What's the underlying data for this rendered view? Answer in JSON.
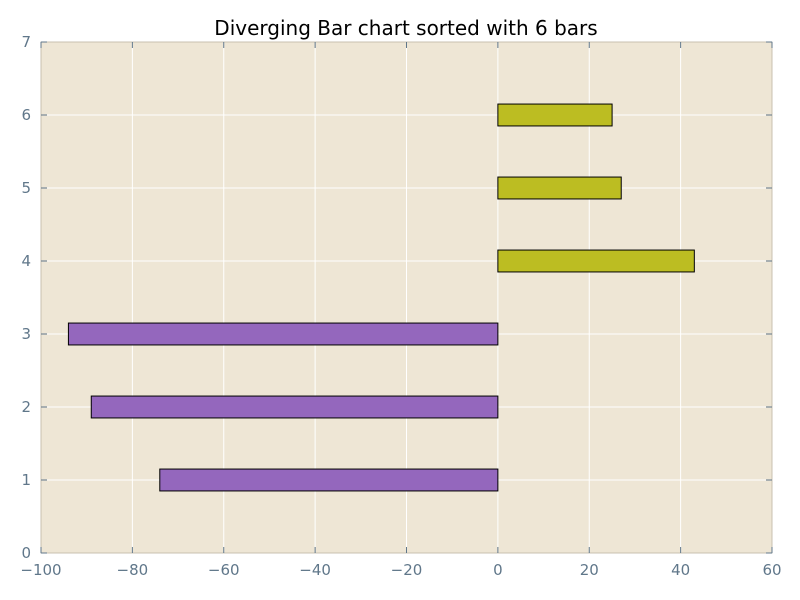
{
  "chart_data": {
    "type": "bar",
    "orientation": "horizontal",
    "title": "Diverging Bar chart sorted with 6 bars",
    "xlabel": "",
    "ylabel": "",
    "xlim": [
      -100,
      60
    ],
    "ylim": [
      0,
      7
    ],
    "x_ticks": [
      "−100",
      "−80",
      "−60",
      "−40",
      "−20",
      "0",
      "20",
      "40",
      "60"
    ],
    "y_ticks": [
      "0",
      "1",
      "2",
      "3",
      "4",
      "5",
      "6",
      "7"
    ],
    "grid": true,
    "legend": "none",
    "bars": [
      {
        "y": 1,
        "value": -74
      },
      {
        "y": 2,
        "value": -89
      },
      {
        "y": 3,
        "value": -94
      },
      {
        "y": 4,
        "value": 43
      },
      {
        "y": 5,
        "value": 27
      },
      {
        "y": 6,
        "value": 25
      }
    ],
    "colors": {
      "negative": "#9467bd",
      "positive": "#bcbd22",
      "background": "#eee6d5",
      "grid": "#ffffff",
      "tick_text": "#60778a",
      "bar_edge": "#000000"
    }
  }
}
